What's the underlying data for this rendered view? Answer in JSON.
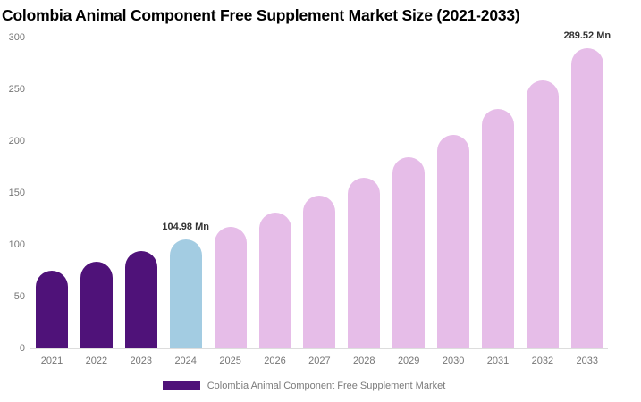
{
  "title": "Colombia Animal Component Free Supplement Market Size (2021-2033)",
  "legend": {
    "label": "Colombia Animal Component Free Supplement Market"
  },
  "colors": {
    "historical": "#4F1279",
    "current": "#A3CCE2",
    "forecast": "#E6BDE8",
    "axis_line": "#DDDDDD",
    "tick_label": "#757575",
    "annotation_text": "#333333",
    "legend_text": "#7B7B7B"
  },
  "chart_data": {
    "type": "bar",
    "title": "Colombia Animal Component Free Supplement Market Size (2021-2033)",
    "xlabel": "",
    "ylabel": "",
    "unit": "Mn",
    "categories": [
      "2021",
      "2022",
      "2023",
      "2024",
      "2025",
      "2026",
      "2027",
      "2028",
      "2029",
      "2030",
      "2031",
      "2032",
      "2033"
    ],
    "values": [
      74.9,
      83.8,
      93.8,
      104.98,
      117.5,
      131.5,
      147.2,
      164.8,
      184.4,
      206.4,
      231.0,
      258.6,
      289.52
    ],
    "point_labels": [
      "",
      "",
      "",
      "104.98 Mn",
      "",
      "",
      "",
      "",
      "",
      "",
      "",
      "",
      "289.52 Mn"
    ],
    "bar_color_keys": [
      "historical",
      "historical",
      "historical",
      "current",
      "forecast",
      "forecast",
      "forecast",
      "forecast",
      "forecast",
      "forecast",
      "forecast",
      "forecast",
      "forecast"
    ],
    "ylim": [
      0,
      300
    ],
    "y_ticks": [
      0,
      50,
      100,
      150,
      200,
      250,
      300
    ],
    "grid": false,
    "legend_position": "bottom",
    "legend_entries": [
      "Colombia Animal Component Free Supplement Market"
    ]
  }
}
